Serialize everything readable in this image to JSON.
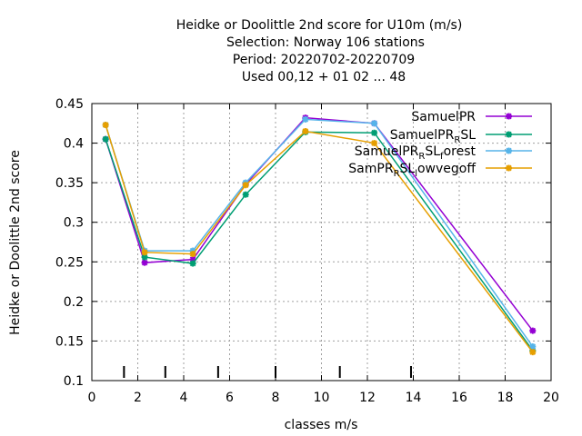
{
  "chart_data": {
    "type": "line",
    "title_lines": [
      "Heidke or Doolittle 2nd score  for U10m (m/s)",
      "Selection: Norway    106 stations",
      "Period: 20220702-20220709",
      "Used  00,12  + 01 02 ... 48"
    ],
    "xlabel": "classes m/s",
    "ylabel": "Heidke or Doolittle 2nd score",
    "xlim": [
      0,
      20
    ],
    "ylim": [
      0.1,
      0.45
    ],
    "xticks": [
      "0",
      "2",
      "4",
      "6",
      "8",
      "10",
      "12",
      "14",
      "16",
      "18",
      "20"
    ],
    "yticks": [
      "0.1",
      "0.15",
      "0.2",
      "0.25",
      "0.3",
      "0.35",
      "0.4",
      "0.45"
    ],
    "class_marks": [
      1.4,
      3.2,
      5.5,
      8.0,
      10.8,
      13.9
    ],
    "grid": true,
    "legend_position": "top-right",
    "series": [
      {
        "name": "SamuelPR",
        "legend": [
          "SamuelPR"
        ],
        "color": "#9400d3",
        "marker": "plus-star",
        "x": [
          0.6,
          2.3,
          4.4,
          6.7,
          9.3,
          12.3,
          19.2
        ],
        "y": [
          0.405,
          0.249,
          0.253,
          0.348,
          0.432,
          0.425,
          0.163
        ]
      },
      {
        "name": "SamuelPR_R SL",
        "legend": [
          "SamuelPR",
          "R",
          "SL"
        ],
        "color": "#009e73",
        "marker": "plus-star",
        "x": [
          0.6,
          2.3,
          4.4,
          6.7,
          9.3,
          12.3,
          19.2
        ],
        "y": [
          0.405,
          0.256,
          0.248,
          0.335,
          0.414,
          0.413,
          0.138
        ]
      },
      {
        "name": "SamuelPR_R SL_forest",
        "legend": [
          "SamuelPR",
          "R",
          "SL",
          "f",
          "orest"
        ],
        "color": "#56b4e9",
        "marker": "plus-star",
        "x": [
          0.6,
          2.3,
          4.4,
          6.7,
          9.3,
          12.3,
          19.2
        ],
        "y": [
          0.423,
          0.264,
          0.264,
          0.35,
          0.43,
          0.425,
          0.143
        ]
      },
      {
        "name": "SamPR_R SL_lowvegoff",
        "legend": [
          "SamPR",
          "R",
          "SL",
          "l",
          "owvegoff"
        ],
        "color": "#e69f00",
        "marker": "plus-star",
        "x": [
          0.6,
          2.3,
          4.4,
          6.7,
          9.3,
          12.3,
          19.2
        ],
        "y": [
          0.423,
          0.262,
          0.26,
          0.347,
          0.415,
          0.4,
          0.136
        ]
      }
    ]
  }
}
